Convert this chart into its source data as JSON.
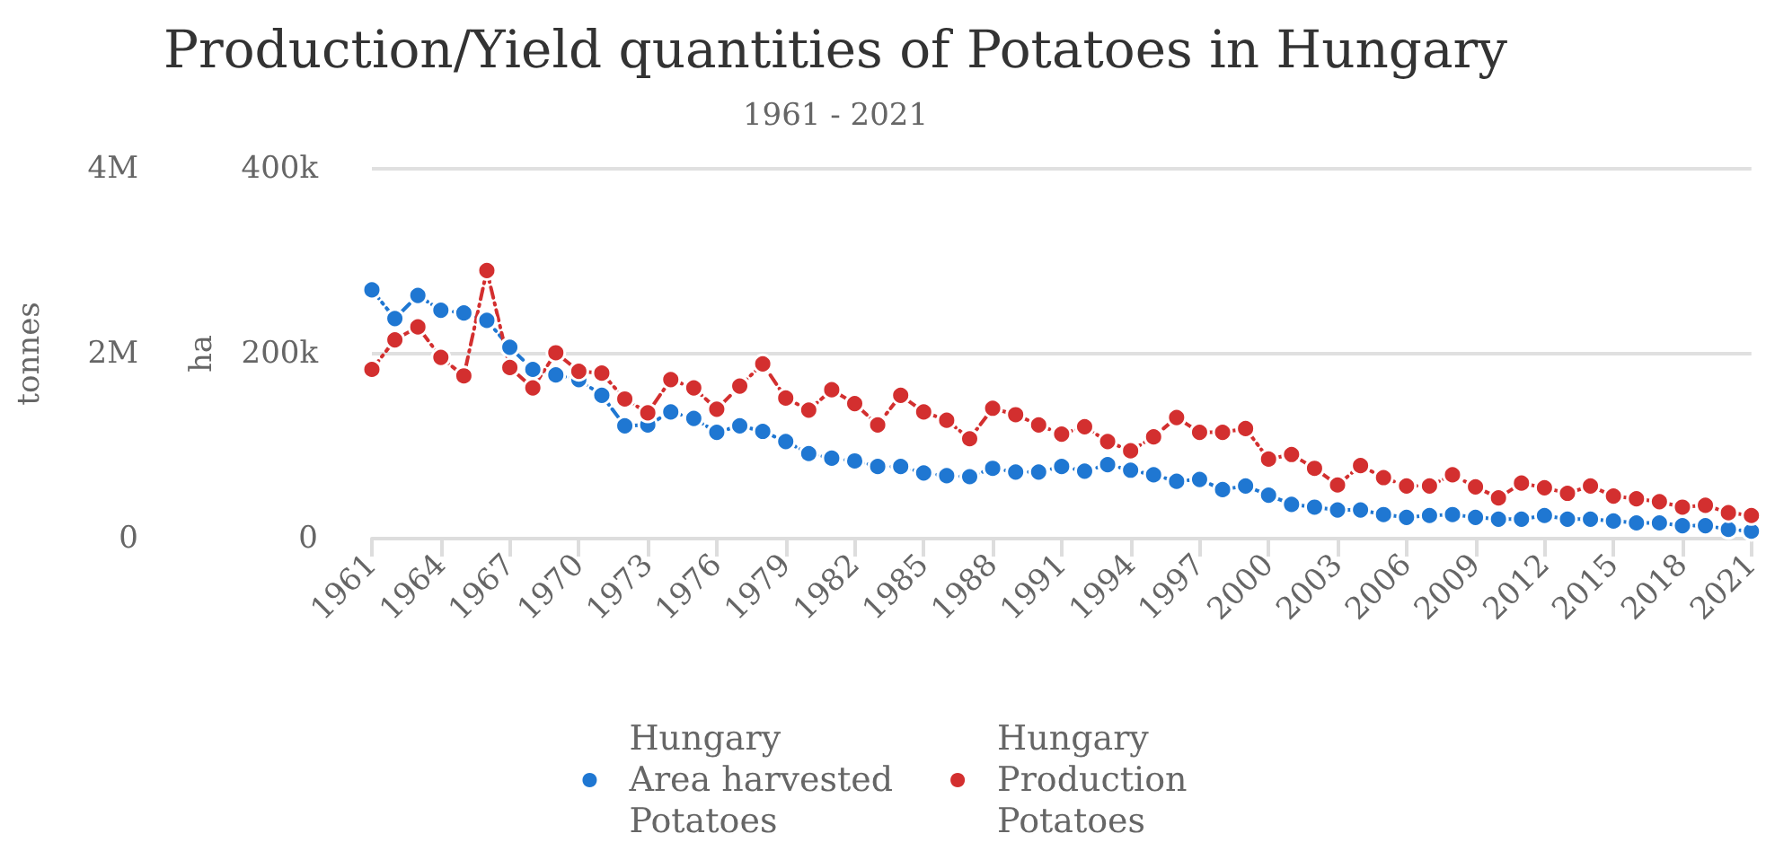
{
  "chart_data": {
    "type": "line",
    "title": "Production/Yield quantities of Potatoes in Hungary",
    "subtitle": "1961 - 2021",
    "ylabel": "ha",
    "y2label": "tonnes",
    "x": [
      1961,
      1962,
      1963,
      1964,
      1965,
      1966,
      1967,
      1968,
      1969,
      1970,
      1971,
      1972,
      1973,
      1974,
      1975,
      1976,
      1977,
      1978,
      1979,
      1980,
      1981,
      1982,
      1983,
      1984,
      1985,
      1986,
      1987,
      1988,
      1989,
      1990,
      1991,
      1992,
      1993,
      1994,
      1995,
      1996,
      1997,
      1998,
      1999,
      2000,
      2001,
      2002,
      2003,
      2004,
      2005,
      2006,
      2007,
      2008,
      2009,
      2010,
      2011,
      2012,
      2013,
      2014,
      2015,
      2016,
      2017,
      2018,
      2019,
      2020,
      2021
    ],
    "xlim": [
      1961,
      2021
    ],
    "xticks": [
      1961,
      1964,
      1967,
      1970,
      1973,
      1976,
      1979,
      1982,
      1985,
      1988,
      1991,
      1994,
      1997,
      2000,
      2003,
      2006,
      2009,
      2012,
      2015,
      2018,
      2021
    ],
    "ylim": [
      0,
      400000
    ],
    "yticks": [
      0,
      {
        "value": 200000,
        "label": "200k"
      },
      {
        "value": 400000,
        "label": "400k"
      }
    ],
    "y2lim": [
      0,
      4000000
    ],
    "y2ticks": [
      0,
      {
        "value": 2000000,
        "label": "2M"
      },
      {
        "value": 4000000,
        "label": "4M"
      }
    ],
    "series": [
      {
        "name": "Hungary\nArea harvested\nPotatoes",
        "color": "#1f77d2",
        "axis": "y",
        "values": [
          269000,
          238000,
          263000,
          247000,
          244000,
          236000,
          207000,
          183000,
          177000,
          172000,
          155000,
          122000,
          123000,
          137000,
          130000,
          115000,
          122000,
          116000,
          105000,
          92000,
          87000,
          84000,
          78000,
          78000,
          71000,
          68000,
          67000,
          76000,
          72000,
          72000,
          78000,
          73000,
          80000,
          74000,
          69000,
          62000,
          64000,
          53000,
          57000,
          47000,
          37000,
          34000,
          31000,
          31000,
          26000,
          23000,
          25000,
          26000,
          23000,
          21000,
          21000,
          25000,
          21000,
          21000,
          19000,
          17000,
          17000,
          14000,
          14000,
          10000,
          8000
        ]
      },
      {
        "name": "Hungary\nProduction\nPotatoes",
        "color": "#d32f2f",
        "axis": "y2",
        "values": [
          1830000,
          2150000,
          2290000,
          1960000,
          1760000,
          2900000,
          1850000,
          1630000,
          2010000,
          1810000,
          1790000,
          1510000,
          1360000,
          1720000,
          1630000,
          1400000,
          1650000,
          1890000,
          1520000,
          1390000,
          1610000,
          1460000,
          1230000,
          1550000,
          1370000,
          1280000,
          1080000,
          1410000,
          1340000,
          1230000,
          1130000,
          1210000,
          1050000,
          950000,
          1100000,
          1310000,
          1150000,
          1150000,
          1190000,
          860000,
          910000,
          760000,
          580000,
          790000,
          660000,
          570000,
          570000,
          690000,
          560000,
          440000,
          600000,
          550000,
          490000,
          570000,
          460000,
          430000,
          400000,
          340000,
          360000,
          280000,
          250000
        ]
      }
    ],
    "grid": "y",
    "legend": "bottom",
    "marker": "circle",
    "line_style": "dashed"
  }
}
